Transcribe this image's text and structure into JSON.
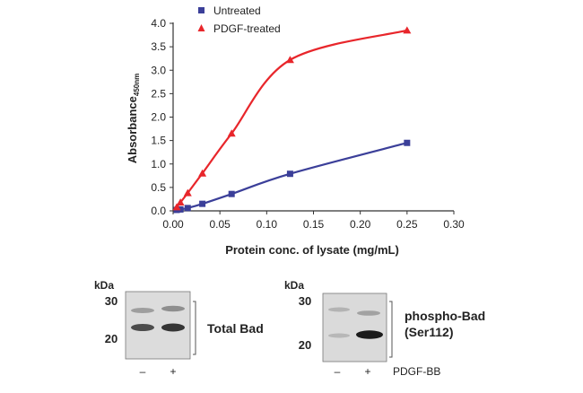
{
  "chart_data": {
    "type": "line",
    "title": "",
    "xlabel": "Protein conc. of lysate (mg/mL)",
    "ylabel": "Absorbance",
    "ylabel_subscript": "450nm",
    "xlim": [
      0,
      0.3
    ],
    "ylim": [
      0,
      4.0
    ],
    "x_ticks": [
      "0.00",
      "0.05",
      "0.10",
      "0.15",
      "0.20",
      "0.25",
      "0.30"
    ],
    "y_ticks": [
      "0.0",
      "0.5",
      "1.0",
      "1.5",
      "2.0",
      "2.5",
      "3.0",
      "3.5",
      "4.0"
    ],
    "legend_position": "top-left",
    "grid": false,
    "series": [
      {
        "name": "Untreated",
        "marker": "square",
        "color": "#3b3f99",
        "x": [
          0.0039,
          0.0078,
          0.0156,
          0.03125,
          0.0625,
          0.125,
          0.25
        ],
        "y": [
          0.02,
          0.03,
          0.06,
          0.15,
          0.36,
          0.79,
          1.45
        ]
      },
      {
        "name": "PDGF-treated",
        "marker": "triangle",
        "color": "#e8262b",
        "x": [
          0.0039,
          0.0078,
          0.0156,
          0.03125,
          0.0625,
          0.125,
          0.25
        ],
        "y": [
          0.08,
          0.18,
          0.38,
          0.8,
          1.65,
          3.22,
          3.85
        ]
      }
    ]
  },
  "blots": {
    "kda_label": "kDa",
    "left": {
      "markers": [
        "30",
        "20"
      ],
      "label": "Total Bad",
      "lanes": [
        "–",
        "+"
      ]
    },
    "right": {
      "markers": [
        "30",
        "20"
      ],
      "label_line1": "phospho-Bad",
      "label_line2": "(Ser112)",
      "lanes": [
        "–",
        "+"
      ],
      "treatment": "PDGF-BB"
    }
  }
}
